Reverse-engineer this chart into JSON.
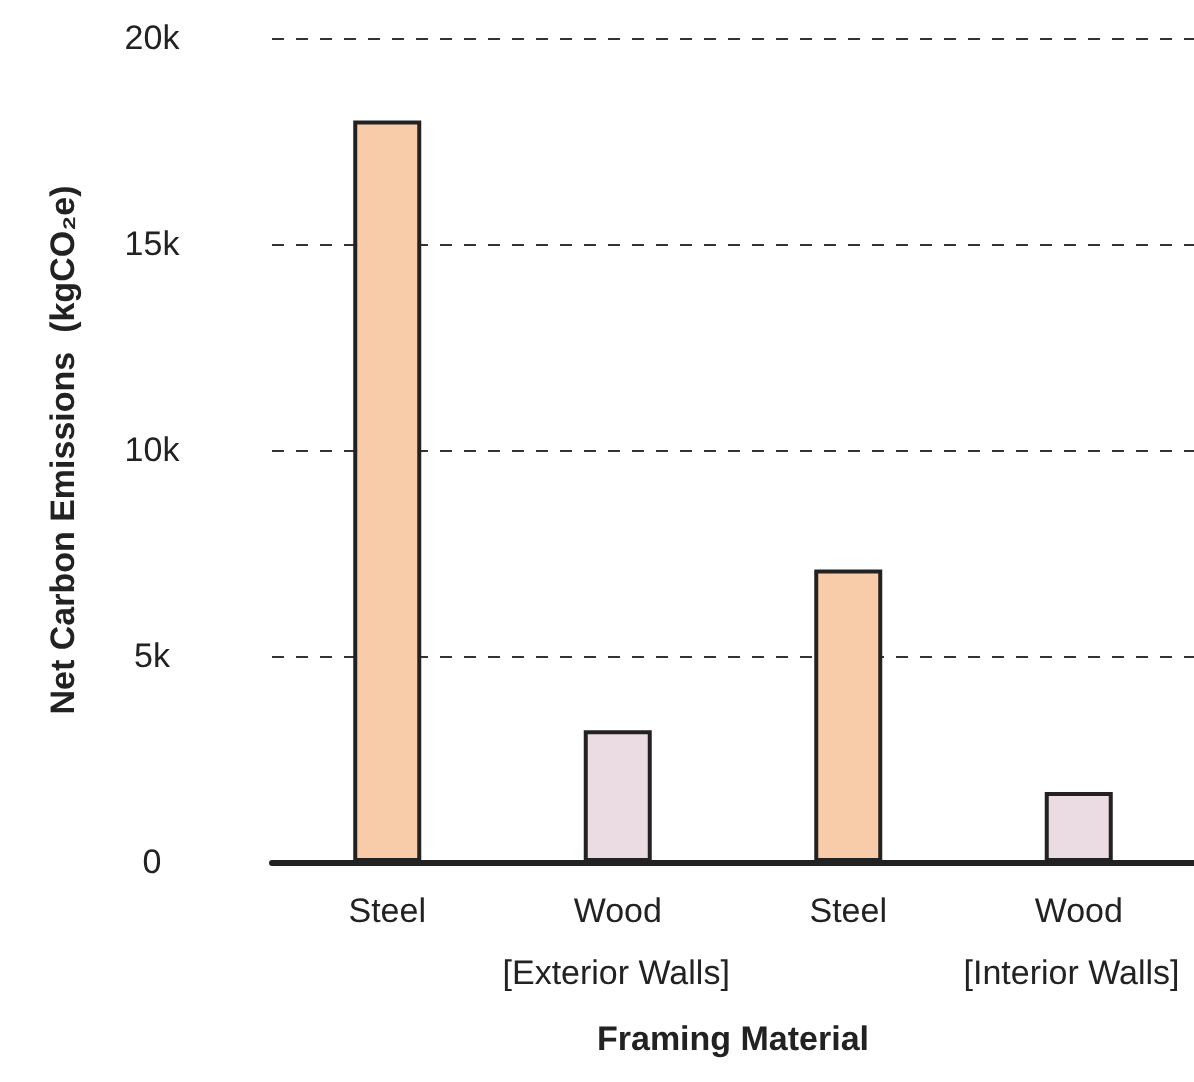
{
  "chart_data": {
    "type": "bar",
    "xlabel": "Framing Material",
    "ylabel": "Net Carbon Emissions  (kgCO₂e)",
    "categories": [
      "Steel",
      "Wood",
      "Steel",
      "Wood"
    ],
    "values": [
      18000,
      3200,
      7100,
      1700
    ],
    "colors": [
      "#f9cca9",
      "#ebdbe3",
      "#f9cca9",
      "#ebdbe3"
    ],
    "ylim": [
      0,
      20000
    ],
    "yticks": [
      {
        "value": 0,
        "label": "0"
      },
      {
        "value": 5000,
        "label": "5k"
      },
      {
        "value": 10000,
        "label": "10k"
      },
      {
        "value": 15000,
        "label": "15k"
      },
      {
        "value": 20000,
        "label": "20k"
      }
    ],
    "grid": "y",
    "annotations": [
      "[Exterior Walls]",
      "[Interior Walls]"
    ]
  }
}
